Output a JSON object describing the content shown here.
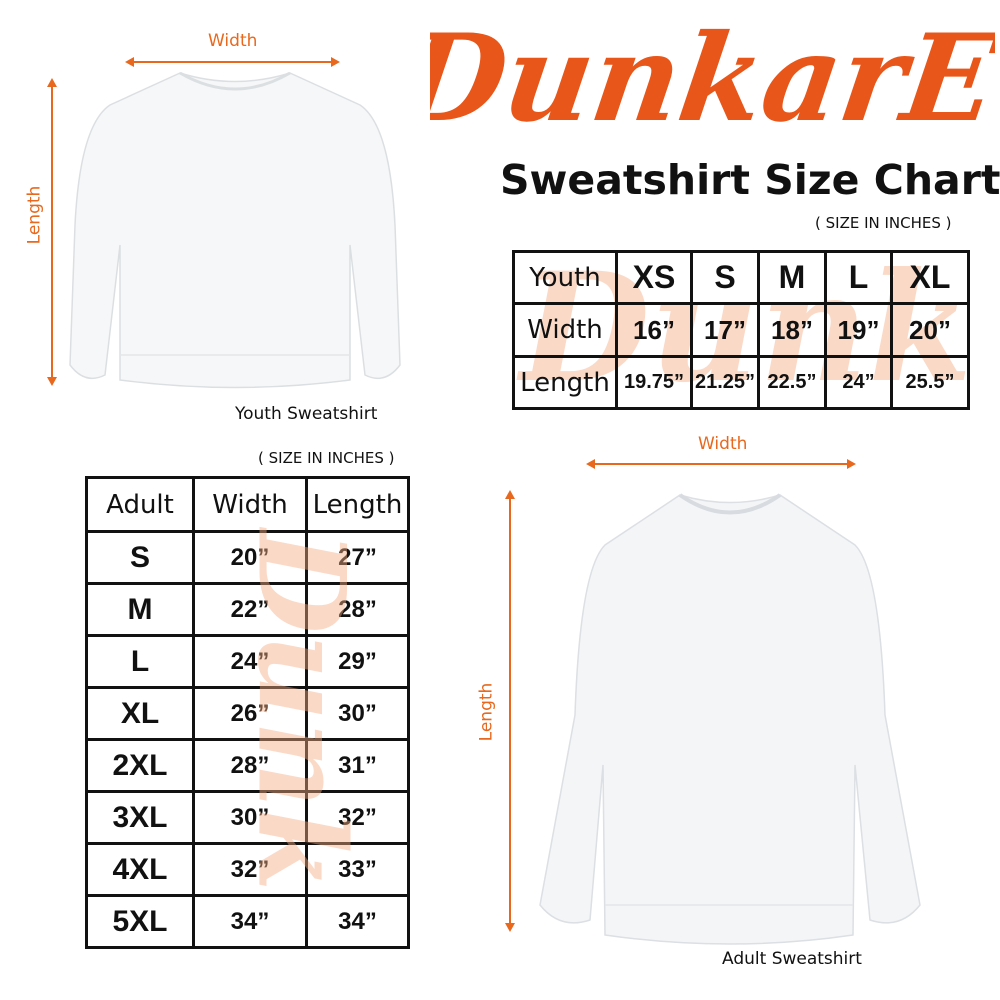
{
  "brand": {
    "logo_text": "DunkarE",
    "color": "#e8561a"
  },
  "title": "Sweatshirt Size Chart",
  "units_note": "( SIZE IN INCHES )",
  "accent_color": "#e8691e",
  "youth": {
    "width_label": "Width",
    "length_label": "Length",
    "caption": "Youth Sweatshirt",
    "units_note": "( SIZE IN INCHES )",
    "table": {
      "header": [
        "Youth",
        "XS",
        "S",
        "M",
        "L",
        "XL"
      ],
      "rows": [
        [
          "Width",
          "16”",
          "17”",
          "18”",
          "19”",
          "20”"
        ],
        [
          "Length",
          "19.75”",
          "21.25”",
          "22.5”",
          "24”",
          "25.5”"
        ]
      ]
    }
  },
  "adult": {
    "width_label": "Width",
    "length_label": "Length",
    "caption": "Adult Sweatshirt",
    "units_note": "( SIZE IN INCHES )",
    "table": {
      "header": [
        "Adult",
        "Width",
        "Length"
      ],
      "rows": [
        [
          "S",
          "20”",
          "27”"
        ],
        [
          "M",
          "22”",
          "28”"
        ],
        [
          "L",
          "24”",
          "29”"
        ],
        [
          "XL",
          "26”",
          "30”"
        ],
        [
          "2XL",
          "28”",
          "31”"
        ],
        [
          "3XL",
          "30”",
          "32”"
        ],
        [
          "4XL",
          "32”",
          "33”"
        ],
        [
          "5XL",
          "34”",
          "34”"
        ]
      ]
    }
  }
}
